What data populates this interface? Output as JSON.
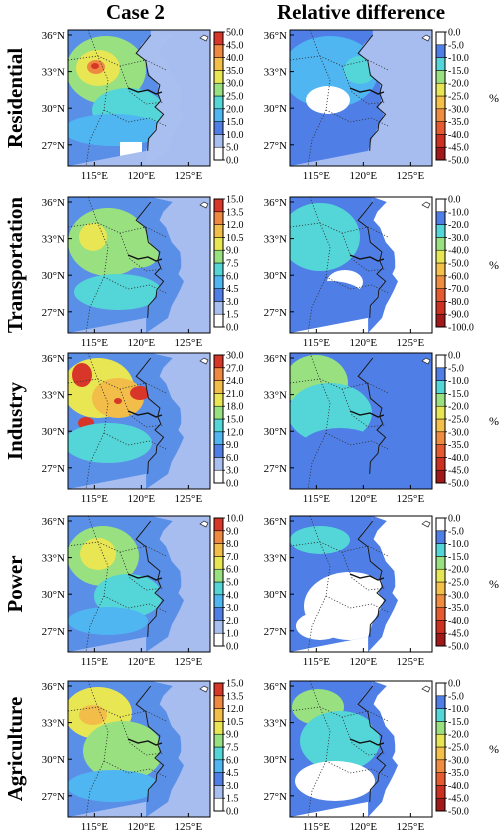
{
  "column_titles": [
    "Case 2",
    "Relative difference"
  ],
  "lat_labels": [
    "36°N",
    "33°N",
    "30°N",
    "27°N"
  ],
  "lon_labels": [
    "115°E",
    "120°E",
    "125°E"
  ],
  "unit_label": "%",
  "colors": {
    "sea": "#a7bdf0",
    "land_dark_blue": "#3b6fe0",
    "land_mid_blue": "#5a8fe8",
    "coast": "#1a1a1a"
  },
  "rows": [
    {
      "sector": "Residential",
      "case_scale": [
        "50.0",
        "45.0",
        "40.0",
        "35.0",
        "30.0",
        "25.0",
        "20.0",
        "15.0",
        "10.0",
        "5.0",
        "0.0"
      ],
      "diff_scale": [
        "0.0",
        "-5.0",
        "-10.0",
        "-15.0",
        "-20.0",
        "-25.0",
        "-30.0",
        "-35.0",
        "-40.0",
        "-45.0",
        "-50.0"
      ]
    },
    {
      "sector": "Transportation",
      "case_scale": [
        "15.0",
        "13.5",
        "12.0",
        "10.5",
        "9.0",
        "7.5",
        "6.0",
        "4.5",
        "3.0",
        "1.5",
        "0.0"
      ],
      "diff_scale": [
        "0.0",
        "-10.0",
        "-20.0",
        "-30.0",
        "-40.0",
        "-50.0",
        "-60.0",
        "-70.0",
        "-80.0",
        "-90.0",
        "-100.0"
      ]
    },
    {
      "sector": "Industry",
      "case_scale": [
        "30.0",
        "27.0",
        "24.0",
        "21.0",
        "18.0",
        "15.0",
        "12.0",
        "9.0",
        "6.0",
        "3.0",
        "0.0"
      ],
      "diff_scale": [
        "0.0",
        "-5.0",
        "-10.0",
        "-15.0",
        "-20.0",
        "-25.0",
        "-30.0",
        "-35.0",
        "-40.0",
        "-45.0",
        "-50.0"
      ]
    },
    {
      "sector": "Power",
      "case_scale": [
        "10.0",
        "9.0",
        "8.0",
        "7.0",
        "6.0",
        "5.0",
        "4.0",
        "3.0",
        "2.0",
        "1.0",
        "0.0"
      ],
      "diff_scale": [
        "0.0",
        "-5.0",
        "-10.0",
        "-15.0",
        "-20.0",
        "-25.0",
        "-30.0",
        "-35.0",
        "-40.0",
        "-45.0",
        "-50.0"
      ]
    },
    {
      "sector": "Agriculture",
      "case_scale": [
        "15.0",
        "13.5",
        "12.0",
        "10.5",
        "9.0",
        "7.5",
        "6.0",
        "4.5",
        "3.0",
        "1.5",
        "0.0"
      ],
      "diff_scale": [
        "0.0",
        "-5.0",
        "-10.0",
        "-15.0",
        "-20.0",
        "-25.0",
        "-30.0",
        "-35.0",
        "-40.0",
        "-45.0",
        "-50.0"
      ]
    }
  ]
}
